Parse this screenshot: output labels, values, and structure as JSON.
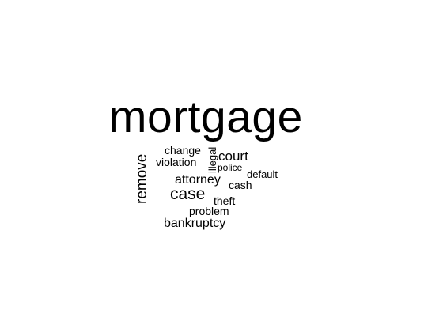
{
  "word_cloud": {
    "words": [
      {
        "id": "mortgage",
        "text": "mortgage",
        "rotated": false
      },
      {
        "id": "remove",
        "text": "remove",
        "rotated": true
      },
      {
        "id": "change",
        "text": "change",
        "rotated": false
      },
      {
        "id": "violation",
        "text": "violation",
        "rotated": false
      },
      {
        "id": "illegal",
        "text": "illegal",
        "rotated": true
      },
      {
        "id": "court",
        "text": "court",
        "rotated": false
      },
      {
        "id": "police",
        "text": "police",
        "rotated": false
      },
      {
        "id": "default",
        "text": "default",
        "rotated": false
      },
      {
        "id": "attorney",
        "text": "attorney",
        "rotated": false
      },
      {
        "id": "cash",
        "text": "cash",
        "rotated": false
      },
      {
        "id": "case",
        "text": "case",
        "rotated": false
      },
      {
        "id": "theft",
        "text": "theft",
        "rotated": false
      },
      {
        "id": "problem",
        "text": "problem",
        "rotated": false
      },
      {
        "id": "bankruptcy",
        "text": "bankruptcy",
        "rotated": false
      }
    ],
    "colors": {
      "text": "#000000",
      "background": "#ffffff"
    }
  }
}
